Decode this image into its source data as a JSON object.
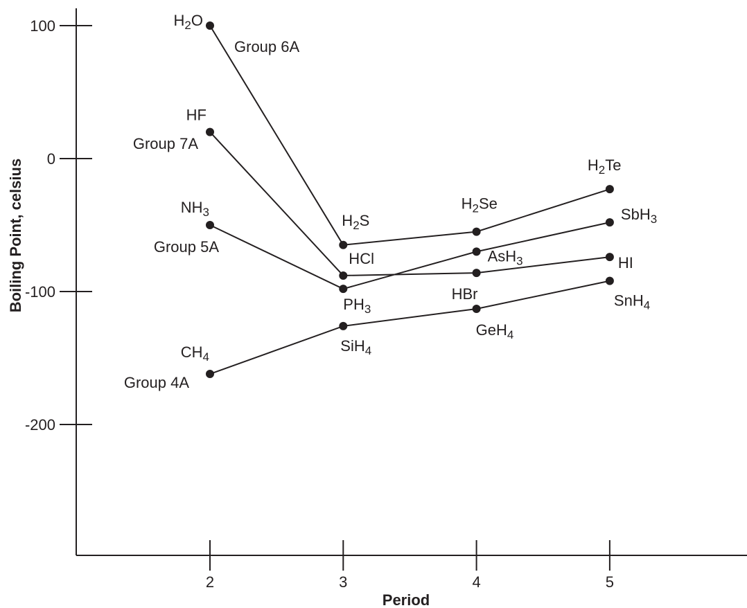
{
  "chart_data": {
    "type": "line",
    "title": "",
    "xlabel": "Period",
    "ylabel": "Boiling Point, celsius",
    "xlim": [
      1,
      6
    ],
    "ylim": [
      -300,
      110
    ],
    "x_ticks": [
      2,
      3,
      4,
      5
    ],
    "y_ticks": [
      100,
      0,
      -100,
      -200
    ],
    "grid": false,
    "line_color": "#231f20",
    "series": [
      {
        "name": "Group 6A",
        "points": [
          {
            "x": 2,
            "y": 100,
            "label": "H₂O"
          },
          {
            "x": 3,
            "y": -65,
            "label": "H₂S"
          },
          {
            "x": 4,
            "y": -55,
            "label": "H₂Se"
          },
          {
            "x": 5,
            "y": -23,
            "label": "H₂Te"
          }
        ]
      },
      {
        "name": "Group 7A",
        "points": [
          {
            "x": 2,
            "y": 20,
            "label": "HF"
          },
          {
            "x": 3,
            "y": -88,
            "label": "HCl"
          },
          {
            "x": 4,
            "y": -86,
            "label": "HBr"
          },
          {
            "x": 5,
            "y": -74,
            "label": "HI"
          }
        ]
      },
      {
        "name": "Group 5A",
        "points": [
          {
            "x": 2,
            "y": -50,
            "label": "NH₃"
          },
          {
            "x": 3,
            "y": -98,
            "label": "PH₃"
          },
          {
            "x": 4,
            "y": -70,
            "label": "AsH₃"
          },
          {
            "x": 5,
            "y": -48,
            "label": "SbH₃"
          }
        ]
      },
      {
        "name": "Group 4A",
        "points": [
          {
            "x": 2,
            "y": -162,
            "label": "CH₄"
          },
          {
            "x": 3,
            "y": -126,
            "label": "SiH₄"
          },
          {
            "x": 4,
            "y": -113,
            "label": "GeH₄"
          },
          {
            "x": 5,
            "y": -92,
            "label": "SnH₄"
          }
        ]
      }
    ]
  }
}
